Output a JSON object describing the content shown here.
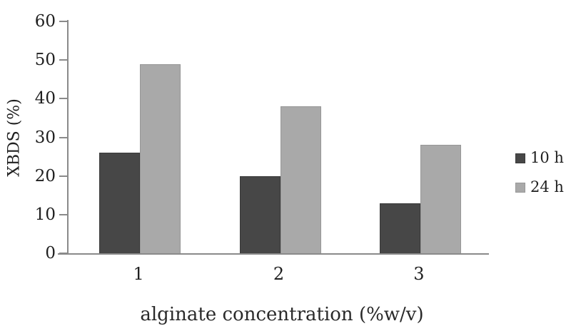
{
  "chart_data": {
    "type": "bar",
    "title": "",
    "xlabel": "alginate concentration (%w/v)",
    "ylabel": "XBDS (%)",
    "categories": [
      "1",
      "2",
      "3"
    ],
    "series": [
      {
        "name": "10 h",
        "values": [
          26,
          20,
          13
        ],
        "color": "#474747",
        "border_color": "#3a3a3a"
      },
      {
        "name": "24 h",
        "values": [
          49,
          38,
          28
        ],
        "color": "#a9a9a9",
        "border_color": "#979797"
      }
    ],
    "ylim": [
      0,
      60
    ],
    "yticks": [
      0,
      10,
      20,
      30,
      40,
      50,
      60
    ],
    "grid": false,
    "legend_position": "right",
    "colors": {
      "axis": "#8a8a8a",
      "text": "#1f1f1f",
      "background": "#ffffff"
    }
  }
}
